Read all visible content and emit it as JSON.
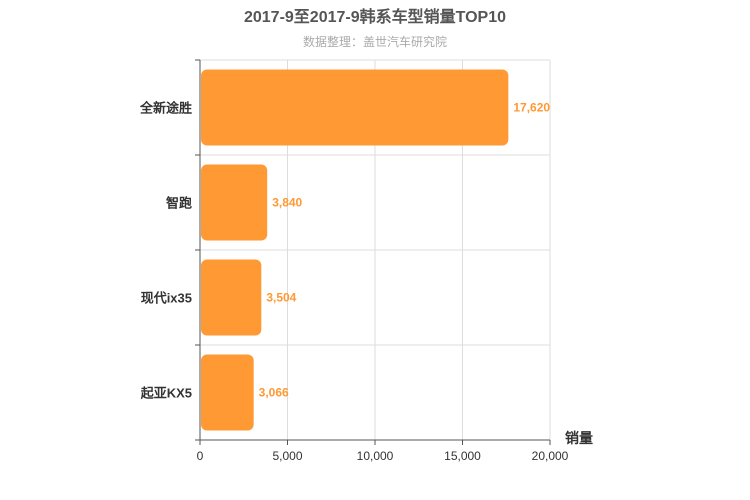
{
  "chart_data": {
    "type": "bar",
    "orientation": "horizontal",
    "title": "2017-9至2017-9韩系车型销量TOP10",
    "subtitle": "数据整理：盖世汽车研究院",
    "categories": [
      "全新途胜",
      "智跑",
      "现代ix35",
      "起亚KX5"
    ],
    "values": [
      17620,
      3840,
      3504,
      3066
    ],
    "value_labels": [
      "17,620",
      "3,840",
      "3,504",
      "3,066"
    ],
    "x_ticks": [
      "0",
      "5,000",
      "10,000",
      "15,000",
      "20,000"
    ],
    "xlim": [
      0,
      20000
    ],
    "xlabel": "销量",
    "grid": true,
    "bar_color": "#ff9933",
    "label_color": "#ff9933"
  }
}
